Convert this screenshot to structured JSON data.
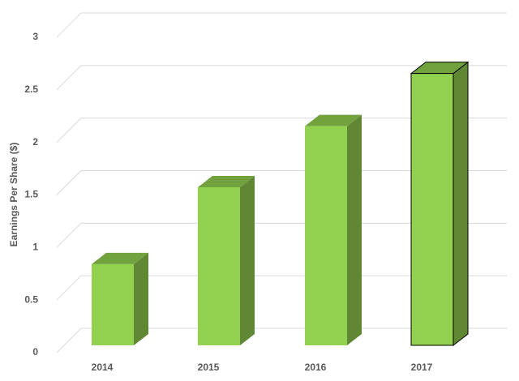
{
  "chart_data": {
    "type": "bar3d",
    "y_label": "Earnings Per Share ($)",
    "categories": [
      "2014",
      "2015",
      "2016",
      "2017"
    ],
    "values": [
      0.77,
      1.5,
      2.08,
      2.58
    ],
    "color": "#92d050",
    "ylim": [
      0,
      3
    ],
    "yticks": [
      0,
      0.5,
      1,
      1.5,
      2,
      2.5,
      3
    ],
    "grid": true
  }
}
